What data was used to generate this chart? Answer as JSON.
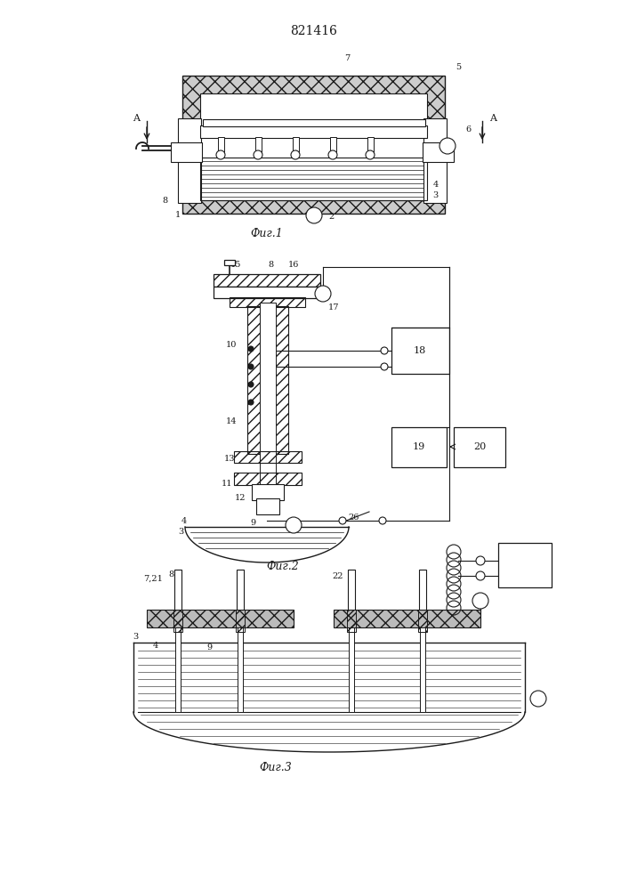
{
  "title": "821416",
  "fig1_caption": "Фиг.1",
  "fig2_caption": "Фиг.2",
  "fig3_caption": "Фиг.3",
  "line_color": "#1a1a1a",
  "fig_width": 7.07,
  "fig_height": 10.0
}
